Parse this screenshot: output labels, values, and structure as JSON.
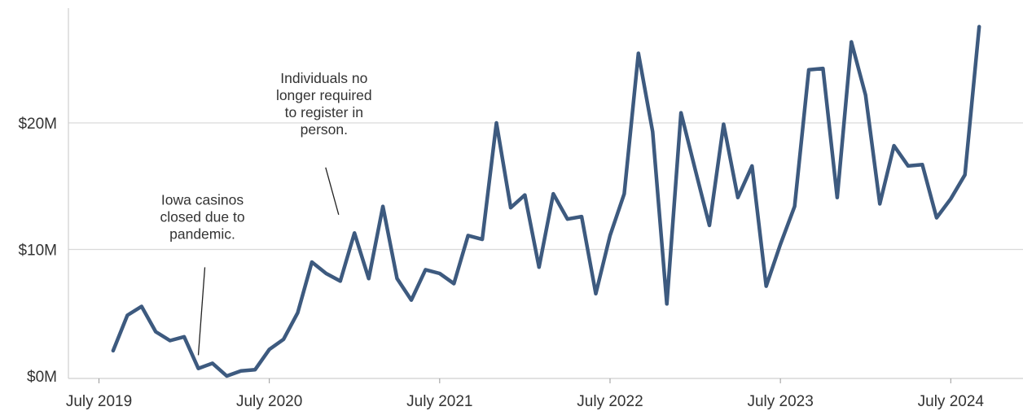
{
  "chart_data": {
    "type": "line",
    "title": "",
    "xlabel": "",
    "ylabel": "",
    "ylim": [
      0,
      28
    ],
    "yticks": [
      {
        "value": 0,
        "label": "$0M"
      },
      {
        "value": 10,
        "label": "$10M"
      },
      {
        "value": 20,
        "label": "$20M"
      }
    ],
    "xticks": [
      {
        "value": "2019-07",
        "label": "July 2019"
      },
      {
        "value": "2020-07",
        "label": "July 2020"
      },
      {
        "value": "2021-07",
        "label": "July 2021"
      },
      {
        "value": "2022-07",
        "label": "July 2022"
      },
      {
        "value": "2023-07",
        "label": "July 2023"
      },
      {
        "value": "2024-07",
        "label": "July 2024"
      }
    ],
    "grid": true,
    "line_color": "#3d5a7f",
    "series": [
      {
        "x": [
          "2019-08",
          "2019-09",
          "2019-10",
          "2019-11",
          "2019-12",
          "2020-01",
          "2020-02",
          "2020-03",
          "2020-04",
          "2020-05",
          "2020-06",
          "2020-07",
          "2020-08",
          "2020-09",
          "2020-10",
          "2020-11",
          "2020-12",
          "2021-01",
          "2021-02",
          "2021-03",
          "2021-04",
          "2021-05",
          "2021-06",
          "2021-07",
          "2021-08",
          "2021-09",
          "2021-10",
          "2021-11",
          "2021-12",
          "2022-01",
          "2022-02",
          "2022-03",
          "2022-04",
          "2022-05",
          "2022-06",
          "2022-07",
          "2022-08",
          "2022-09",
          "2022-10",
          "2022-11",
          "2022-12",
          "2023-01",
          "2023-02",
          "2023-03",
          "2023-04",
          "2023-05",
          "2023-06",
          "2023-07",
          "2023-08",
          "2023-09",
          "2023-10",
          "2023-11",
          "2023-12",
          "2024-01",
          "2024-02",
          "2024-03",
          "2024-04",
          "2024-05",
          "2024-06",
          "2024-07",
          "2024-08",
          "2024-09"
        ],
        "values": [
          2.0,
          4.8,
          5.5,
          3.5,
          2.8,
          3.1,
          0.6,
          1.0,
          0.0,
          0.4,
          0.5,
          2.1,
          2.9,
          5.0,
          9.0,
          8.1,
          7.5,
          11.3,
          7.7,
          13.4,
          7.7,
          6.0,
          8.4,
          8.1,
          7.3,
          11.1,
          10.8,
          20.0,
          13.3,
          14.3,
          8.6,
          14.4,
          12.4,
          12.6,
          6.5,
          11.1,
          14.4,
          25.5,
          19.3,
          5.7,
          20.8,
          16.3,
          11.9,
          19.9,
          14.1,
          16.6,
          7.1,
          10.4,
          13.4,
          24.2,
          24.3,
          14.1,
          26.4,
          22.2,
          13.6,
          18.2,
          16.6,
          16.7,
          12.5,
          14.0,
          15.9,
          27.6
        ]
      }
    ],
    "annotations": [
      {
        "x": "2020-02",
        "y": 1.0,
        "text": [
          "Iowa casinos",
          "closed due to",
          "pandemic."
        ]
      },
      {
        "x": "2020-12",
        "y": 12.1,
        "text": [
          "Individuals no",
          "longer required",
          "to register in",
          "person."
        ]
      }
    ]
  }
}
